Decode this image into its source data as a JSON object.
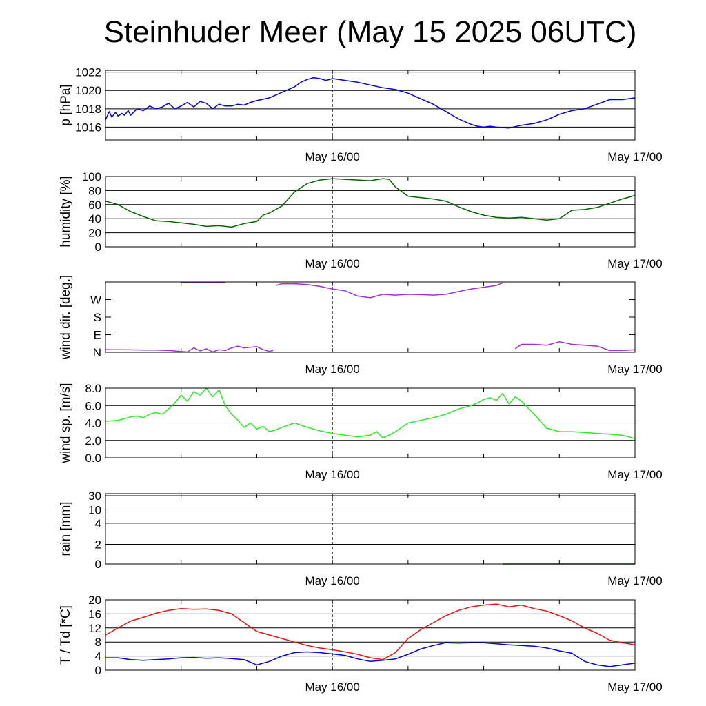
{
  "title": "Steinhuder Meer (May 15 2025 06UTC)",
  "colors": {
    "pressure": "#0000dd",
    "humidity": "#006400",
    "wind_dir": "#9b30d9",
    "wind_speed": "#22ee22",
    "rain": "#006400",
    "temperature": "#ee1111",
    "dewpoint": "#0000dd",
    "grid": "#000000"
  },
  "chart_data": [
    {
      "type": "line",
      "id": "pressure",
      "ylabel": "p [hPa]",
      "xlim": [
        0,
        42
      ],
      "ylim": [
        1014.6,
        1022.2
      ],
      "yticks": [
        1016,
        1018,
        1020,
        1022
      ],
      "yticklabels": [
        "1016",
        "1018",
        "1020",
        "1022"
      ],
      "xticks": [
        18,
        42
      ],
      "xticklabels": [
        "May 16/00",
        "May 17/00"
      ],
      "series": [
        {
          "color_key": "pressure",
          "x": [
            0,
            0.3,
            0.5,
            0.8,
            1,
            1.3,
            1.5,
            1.8,
            2,
            2.5,
            3,
            3.5,
            4,
            4.5,
            5,
            5.5,
            6,
            6.5,
            7,
            7.5,
            8,
            8.5,
            9,
            9.5,
            10,
            10.5,
            11,
            11.5,
            12,
            13,
            14,
            15,
            15.5,
            16,
            16.5,
            17,
            17.5,
            18,
            18.5,
            19,
            20,
            21,
            22,
            23,
            24,
            25,
            26,
            27,
            28,
            29,
            29.5,
            30,
            30.5,
            31,
            32,
            33,
            34,
            35,
            36,
            37,
            38,
            39,
            40,
            41,
            42
          ],
          "y": [
            1016.8,
            1017.7,
            1017.1,
            1017.6,
            1017.2,
            1017.5,
            1017.3,
            1017.8,
            1017.3,
            1018.0,
            1017.8,
            1018.3,
            1018.0,
            1018.2,
            1018.6,
            1018.0,
            1018.3,
            1018.7,
            1018.2,
            1018.8,
            1018.6,
            1018.0,
            1018.5,
            1018.3,
            1018.3,
            1018.5,
            1018.4,
            1018.7,
            1018.9,
            1019.2,
            1019.8,
            1020.4,
            1020.9,
            1021.2,
            1021.4,
            1021.3,
            1021.1,
            1021.3,
            1021.2,
            1021.1,
            1020.9,
            1020.6,
            1020.3,
            1020.1,
            1019.7,
            1019.1,
            1018.5,
            1017.7,
            1016.9,
            1016.3,
            1016.1,
            1016.0,
            1016.1,
            1016.0,
            1015.9,
            1016.2,
            1016.4,
            1016.8,
            1017.4,
            1017.8,
            1018.0,
            1018.5,
            1019.0,
            1019.0,
            1019.2
          ]
        }
      ]
    },
    {
      "type": "line",
      "id": "humidity",
      "ylabel": "humidity [%]",
      "xlim": [
        0,
        42
      ],
      "ylim": [
        0,
        100
      ],
      "yticks": [
        0,
        20,
        40,
        60,
        80,
        100
      ],
      "yticklabels": [
        "0",
        "20",
        "40",
        "60",
        "80",
        "100"
      ],
      "xticks": [
        18,
        42
      ],
      "xticklabels": [
        "May 16/00",
        "May 17/00"
      ],
      "series": [
        {
          "color_key": "humidity",
          "x": [
            0,
            1,
            2,
            3,
            4,
            5,
            6,
            7,
            8,
            9,
            10,
            11,
            12,
            12.5,
            13,
            14,
            15,
            16,
            17,
            18,
            19,
            20,
            21,
            22,
            22.5,
            23,
            24,
            25,
            26,
            27,
            28,
            29,
            30,
            31,
            32,
            33,
            34,
            35,
            36,
            37,
            38,
            39,
            40,
            41,
            42
          ],
          "y": [
            65,
            60,
            50,
            43,
            37,
            36,
            34,
            32,
            29,
            30,
            28,
            33,
            36,
            45,
            48,
            58,
            78,
            90,
            95,
            97,
            96,
            95,
            94,
            97,
            96,
            85,
            72,
            70,
            68,
            65,
            57,
            50,
            45,
            42,
            41,
            42,
            40,
            38,
            40,
            52,
            53,
            56,
            62,
            68,
            73
          ]
        }
      ]
    },
    {
      "type": "line",
      "id": "wind_dir",
      "ylabel": "wind dir. [deg.]",
      "xlim": [
        0,
        42
      ],
      "ylim": [
        0,
        400
      ],
      "yticks": [
        0,
        100,
        200,
        300
      ],
      "yticklabels": [
        "N",
        "E",
        "S",
        "W"
      ],
      "xticks": [
        18,
        42
      ],
      "xticklabels": [
        "May 16/00",
        "May 17/00"
      ],
      "series": [
        {
          "color_key": "wind_dir",
          "x": [
            6,
            7.5,
            9.5
          ],
          "y": [
            398,
            397,
            398
          ]
        },
        {
          "color_key": "wind_dir",
          "x": [
            0,
            1,
            2,
            3,
            4,
            5,
            6,
            6.5,
            7,
            7.5,
            8,
            8.5,
            9,
            9.5,
            10,
            10.5,
            11,
            12,
            12.5,
            13,
            13.3
          ],
          "y": [
            15,
            15,
            14,
            13,
            13,
            10,
            5,
            2,
            25,
            8,
            20,
            2,
            15,
            10,
            25,
            35,
            25,
            32,
            15,
            5,
            10
          ]
        },
        {
          "color_key": "wind_dir",
          "x": [
            13.5,
            14,
            15,
            16,
            17,
            18,
            19,
            20,
            21,
            22,
            23,
            24,
            25,
            26,
            27,
            28,
            29,
            30,
            31,
            31.5
          ],
          "y": [
            380,
            390,
            390,
            385,
            375,
            360,
            350,
            320,
            310,
            330,
            325,
            330,
            328,
            325,
            330,
            345,
            360,
            370,
            380,
            395
          ]
        },
        {
          "color_key": "wind_dir",
          "x": [
            32.5,
            33,
            34,
            35,
            36,
            37,
            38,
            39,
            40,
            41,
            42
          ],
          "y": [
            20,
            45,
            45,
            40,
            60,
            45,
            40,
            35,
            10,
            10,
            15
          ]
        }
      ]
    },
    {
      "type": "line",
      "id": "wind_speed",
      "ylabel": "wind sp. [m/s]",
      "xlim": [
        0,
        42
      ],
      "ylim": [
        0,
        8
      ],
      "yticks": [
        0,
        2,
        4,
        6,
        8
      ],
      "yticklabels": [
        "0.0",
        "2.0",
        "4.0",
        "6.0",
        "8.0"
      ],
      "xticks": [
        18,
        42
      ],
      "xticklabels": [
        "May 16/00",
        "May 17/00"
      ],
      "series": [
        {
          "color_key": "wind_speed",
          "x": [
            0,
            1,
            2,
            2.5,
            3,
            3.5,
            4,
            4.5,
            5,
            5.5,
            6,
            6.5,
            7,
            7.5,
            8,
            8.5,
            9,
            9.5,
            10,
            10.5,
            11,
            11.5,
            12,
            12.5,
            13,
            13.5,
            14,
            15,
            16,
            17,
            18,
            19,
            20,
            21,
            21.5,
            22,
            22.5,
            23,
            24,
            25,
            26,
            27,
            28,
            29,
            29.5,
            30,
            30.5,
            31,
            31.5,
            32,
            32.5,
            33,
            34,
            34.5,
            35,
            36,
            37,
            38,
            39,
            40,
            41,
            42
          ],
          "y": [
            4.2,
            4.3,
            4.7,
            4.8,
            4.6,
            5.0,
            5.2,
            5.0,
            5.6,
            6.3,
            7.2,
            6.5,
            7.6,
            7.2,
            8.0,
            7.0,
            7.8,
            6.0,
            5.0,
            4.3,
            3.5,
            4.0,
            3.3,
            3.6,
            3.0,
            3.2,
            3.5,
            4.0,
            3.5,
            3.1,
            2.8,
            2.6,
            2.4,
            2.6,
            3.0,
            2.3,
            2.6,
            3.0,
            4.0,
            4.3,
            4.6,
            5.0,
            5.6,
            6.0,
            6.3,
            6.7,
            6.9,
            6.6,
            7.4,
            6.2,
            7.0,
            6.5,
            5.0,
            4.2,
            3.4,
            3.0,
            3.0,
            2.9,
            2.8,
            2.7,
            2.6,
            2.2
          ]
        }
      ]
    },
    {
      "type": "line",
      "id": "rain",
      "ylabel": "rain [mm]",
      "xlim": [
        0,
        42
      ],
      "ylim": [
        0,
        30
      ],
      "yticks": [
        0,
        2,
        4,
        10,
        30
      ],
      "yticklabels": [
        "0",
        "2",
        "4",
        "10",
        "30"
      ],
      "xticks": [
        18,
        42
      ],
      "xticklabels": [
        "May 16/00",
        "May 17/00"
      ],
      "series": [
        {
          "color_key": "rain",
          "x": [
            31.5,
            42
          ],
          "y": [
            0,
            0
          ]
        }
      ]
    },
    {
      "type": "line",
      "id": "temperature",
      "ylabel": "T / Td [*C]",
      "xlim": [
        0,
        42
      ],
      "ylim": [
        0,
        20
      ],
      "yticks": [
        0,
        4,
        8,
        12,
        16,
        20
      ],
      "yticklabels": [
        "0",
        "4",
        "8",
        "12",
        "16",
        "20"
      ],
      "xticks": [
        18,
        42
      ],
      "xticklabels": [
        "May 16/00",
        "May 17/00"
      ],
      "series": [
        {
          "color_key": "temperature",
          "x": [
            0,
            1,
            2,
            3,
            4,
            5,
            6,
            7,
            8,
            9,
            10,
            11,
            12,
            13,
            14,
            15,
            16,
            17,
            18,
            19,
            20,
            21,
            22,
            23,
            24,
            25,
            26,
            27,
            28,
            29,
            30,
            31,
            32,
            33,
            34,
            35,
            36,
            37,
            38,
            39,
            40,
            41,
            42
          ],
          "y": [
            10,
            12,
            14,
            15,
            16.2,
            17,
            17.5,
            17.3,
            17.4,
            17.0,
            16.0,
            13.5,
            11.0,
            10.0,
            9.0,
            8.0,
            7.0,
            6.3,
            5.8,
            5.2,
            4.5,
            3.5,
            3.0,
            5.0,
            9.0,
            11.5,
            13.5,
            15.5,
            17.0,
            18.0,
            18.5,
            18.8,
            18.0,
            18.5,
            17.5,
            16.8,
            15.5,
            14.0,
            12.0,
            10.5,
            8.5,
            7.8,
            7.2
          ]
        },
        {
          "color_key": "dewpoint",
          "x": [
            0,
            1,
            2,
            3,
            4,
            5,
            6,
            7,
            8,
            9,
            10,
            11,
            12,
            13,
            14,
            15,
            16,
            17,
            18,
            19,
            20,
            21,
            22,
            23,
            24,
            25,
            26,
            27,
            28,
            29,
            30,
            31,
            32,
            33,
            34,
            35,
            36,
            37,
            38,
            39,
            40,
            41,
            42
          ],
          "y": [
            3.5,
            3.5,
            3.0,
            2.8,
            3.0,
            3.2,
            3.5,
            3.6,
            3.4,
            3.5,
            3.3,
            3.0,
            1.5,
            2.5,
            4.0,
            5.0,
            5.2,
            5.0,
            4.6,
            4.2,
            3.2,
            2.5,
            2.8,
            3.2,
            4.5,
            6.0,
            7.0,
            7.8,
            7.7,
            7.8,
            7.8,
            7.5,
            7.2,
            7.0,
            6.8,
            6.3,
            5.5,
            4.8,
            2.5,
            1.5,
            1.0,
            1.5,
            2.0
          ]
        }
      ]
    }
  ]
}
